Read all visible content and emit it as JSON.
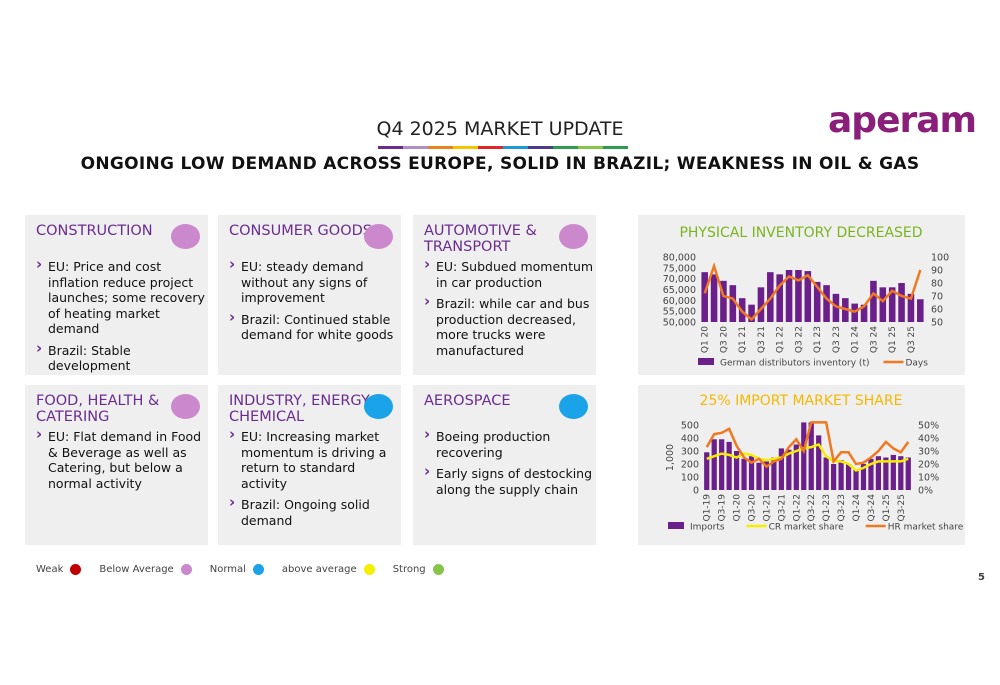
{
  "header": {
    "title": "Q4 2025 MARKET UPDATE",
    "subtitle": "ONGOING LOW DEMAND ACROSS EUROPE, SOLID IN BRAZIL; WEAKNESS IN OIL & GAS",
    "logo": "aperam"
  },
  "panels": [
    {
      "title": "CONSTRUCTION",
      "color": "#cc88cc",
      "bullets": [
        "EU: Price and cost inflation reduce project launches; some recovery of heating market demand",
        "Brazil: Stable development"
      ]
    },
    {
      "title": "CONSUMER GOODS",
      "color": "#cc88cc",
      "bullets": [
        "EU: steady demand without any signs of improvement",
        "Brazil: Continued stable demand for white goods"
      ]
    },
    {
      "title": "AUTOMOTIVE & TRANSPORT",
      "color": "#cc88cc",
      "bullets": [
        "EU: Subdued momentum in car production",
        "Brazil: while car and bus production decreased, more trucks were manufactured"
      ]
    },
    {
      "title": "FOOD, HEALTH & CATERING",
      "color": "#cc88cc",
      "bullets": [
        "EU: Flat demand in Food & Beverage as well as Catering, but below a normal activity"
      ]
    },
    {
      "title": "INDUSTRY, ENERGY, CHEMICAL",
      "color": "#1aa3e8",
      "bullets": [
        "EU: Increasing market momentum is driving a return to standard activity",
        "Brazil: Ongoing solid demand"
      ]
    },
    {
      "title": "AEROSPACE",
      "color": "#1aa3e8",
      "bullets": [
        "Boeing production recovering",
        "Early signs of destocking along the supply chain"
      ]
    }
  ],
  "legend": [
    {
      "label": "Weak",
      "color": "#c00000"
    },
    {
      "label": "Below Average",
      "color": "#cc88cc"
    },
    {
      "label": "Normal",
      "color": "#1aa3e8"
    },
    {
      "label": "above average",
      "color": "#f5ee00"
    },
    {
      "label": "Strong",
      "color": "#86c44a"
    }
  ],
  "page_number": "5",
  "chart_data": [
    {
      "type": "combo",
      "title": "PHYSICAL INVENTORY DECREASED",
      "title_color": "#7ab51d",
      "categories": [
        "Q1 20",
        null,
        "Q3 20",
        null,
        "Q1 21",
        null,
        "Q3 21",
        null,
        "Q1 22",
        null,
        "Q3 22",
        null,
        "Q1 23",
        null,
        "Q3 23",
        null,
        "Q1 24",
        null,
        "Q3 24",
        null,
        "Q1 25",
        null,
        "Q3 25",
        null
      ],
      "series": [
        {
          "name": "German distributors inventory (t)",
          "color": "#6b1f8a",
          "kind": "bar",
          "values": [
            73000,
            72000,
            69000,
            67000,
            61000,
            58000,
            66000,
            73000,
            72000,
            74000,
            74000,
            73500,
            68500,
            67000,
            63000,
            61000,
            58500,
            58000,
            69000,
            66000,
            66000,
            68000,
            63000,
            60500
          ]
        },
        {
          "name": "Days",
          "color": "#f07820",
          "kind": "line",
          "axis": "y2",
          "values": [
            72,
            93,
            70,
            68,
            58,
            52,
            60,
            68,
            78,
            85,
            82,
            86,
            77,
            68,
            62,
            60,
            58,
            62,
            72,
            66,
            74,
            70,
            68,
            90
          ]
        }
      ],
      "ylim": [
        50000,
        80000
      ],
      "yticks": [
        {
          "value": 50000,
          "label": "50,000"
        },
        {
          "value": 55000,
          "label": "55,000"
        },
        {
          "value": 60000,
          "label": "60,000"
        },
        {
          "value": 65000,
          "label": "65,000"
        },
        {
          "value": 70000,
          "label": "70,000"
        },
        {
          "value": 75000,
          "label": "75,000"
        },
        {
          "value": 80000,
          "label": "80,000"
        }
      ],
      "y2lim": [
        50,
        100
      ],
      "y2ticks": [
        50,
        60,
        70,
        80,
        90,
        100
      ]
    },
    {
      "type": "combo",
      "title": "25% IMPORT MARKET SHARE",
      "title_color": "#f5b800",
      "ylabel": "1,000",
      "categories": [
        "Q1-19",
        null,
        "Q3-19",
        null,
        "Q1-20",
        null,
        "Q3-20",
        null,
        "Q1-21",
        null,
        "Q3-21",
        null,
        "Q1-22",
        null,
        "Q3-22",
        null,
        "Q1-23",
        null,
        "Q3-23",
        null,
        "Q1-24",
        null,
        "Q3-24",
        null,
        "Q1-25",
        null,
        "Q3-25",
        null
      ],
      "series": [
        {
          "name": "Imports",
          "color": "#6b1f8a",
          "kind": "bar",
          "values": [
            290,
            390,
            390,
            370,
            300,
            240,
            260,
            210,
            220,
            250,
            320,
            310,
            350,
            520,
            520,
            420,
            250,
            200,
            230,
            200,
            160,
            200,
            240,
            260,
            250,
            270,
            260,
            250
          ]
        },
        {
          "name": "CR market share",
          "color": "#f5ee00",
          "kind": "line",
          "axis": "y2",
          "values": [
            24,
            26,
            28,
            27,
            25,
            28,
            27,
            24,
            23,
            24,
            25,
            28,
            30,
            32,
            33,
            35,
            26,
            22,
            22,
            20,
            15,
            17,
            20,
            22,
            22,
            22,
            22,
            24
          ]
        },
        {
          "name": "HR market share",
          "color": "#f07820",
          "kind": "line",
          "axis": "y2",
          "values": [
            33,
            43,
            44,
            47,
            34,
            25,
            21,
            24,
            18,
            22,
            24,
            33,
            39,
            30,
            52,
            52,
            52,
            22,
            29,
            29,
            20,
            21,
            25,
            30,
            37,
            32,
            29,
            37
          ]
        }
      ],
      "ylim": [
        0,
        500
      ],
      "yticks": [
        0,
        100,
        200,
        300,
        400,
        500
      ],
      "y2lim": [
        0,
        50
      ],
      "y2ticks": [
        {
          "value": 0,
          "label": "0%"
        },
        {
          "value": 10,
          "label": "10%"
        },
        {
          "value": 20,
          "label": "20%"
        },
        {
          "value": 30,
          "label": "30%"
        },
        {
          "value": 40,
          "label": "40%"
        },
        {
          "value": 50,
          "label": "50%"
        }
      ]
    }
  ]
}
